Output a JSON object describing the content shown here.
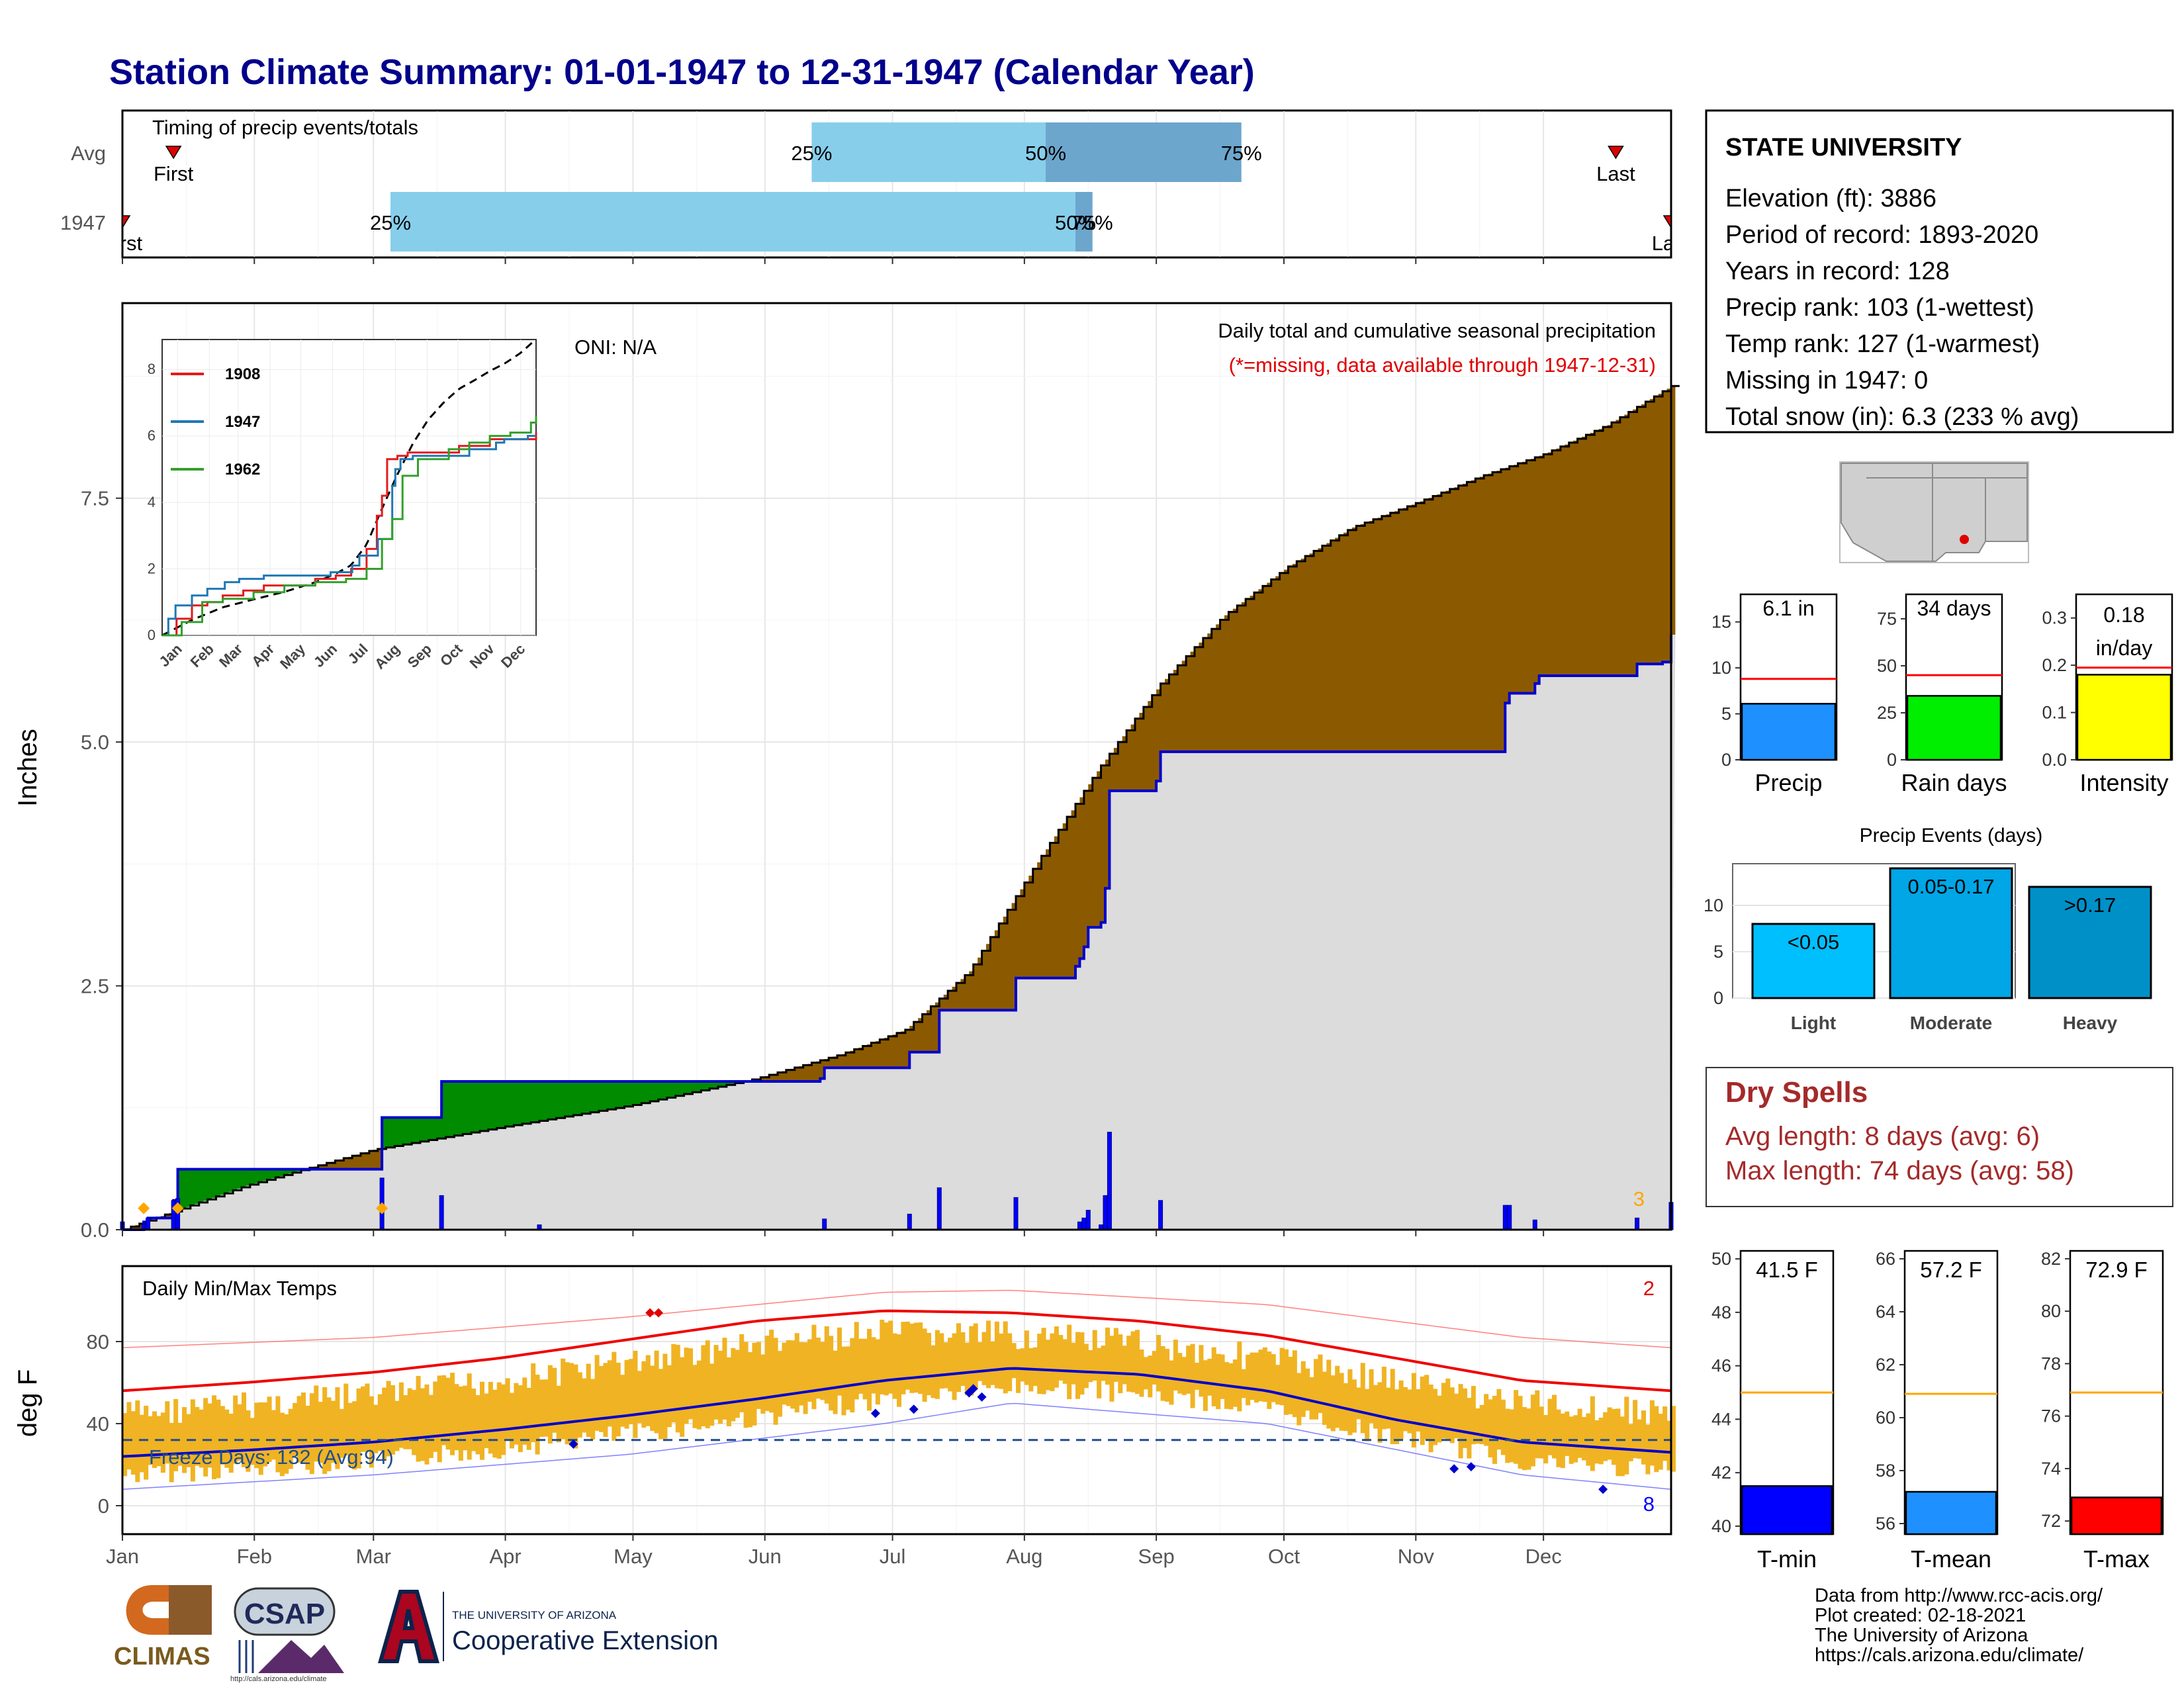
{
  "title": "Station Climate Summary: 01-01-1947 to 12-31-1947 (Calendar Year)",
  "timing": {
    "label": "Timing of precip events/totals",
    "rows": [
      "Avg",
      "1947"
    ],
    "first": "First",
    "last": "Last",
    "pct": [
      "25%",
      "50%",
      "75%"
    ],
    "avg": {
      "first_doy": 13,
      "p25_doy": 163,
      "p50_doy": 218,
      "p75_doy": 264,
      "last_doy": 352
    },
    "yr": {
      "first_doy": 1,
      "p25_doy": 64,
      "p50_doy": 225,
      "p75_doy": 229,
      "last_doy": 365
    }
  },
  "months": [
    "Jan",
    "Feb",
    "Mar",
    "Apr",
    "May",
    "Jun",
    "Jul",
    "Aug",
    "Sep",
    "Oct",
    "Nov",
    "Dec"
  ],
  "precip": {
    "ylabel": "Inches",
    "yticks": [
      "0.0",
      "2.5",
      "5.0",
      "7.5"
    ],
    "oni": "ONI: N/A",
    "note1": "Daily total and cumulative seasonal precipitation",
    "note2": "(*=missing, data available through 1947-12-31)",
    "corner": "3"
  },
  "inset": {
    "xticks": [
      "Jan",
      "Feb",
      "Mar",
      "Apr",
      "May",
      "Jun",
      "Jul",
      "Aug",
      "Sep",
      "Oct",
      "Nov",
      "Dec"
    ],
    "yticks": [
      "0",
      "2",
      "4",
      "6",
      "8"
    ],
    "legend": [
      {
        "name": "1908",
        "color": "#e31a1c"
      },
      {
        "name": "1947",
        "color": "#1f78b4"
      },
      {
        "name": "1962",
        "color": "#33a02c"
      }
    ]
  },
  "temp": {
    "ylabel": "deg F",
    "panel_label": "Daily Min/Max Temps",
    "yticks": [
      "0",
      "40",
      "80"
    ],
    "freeze": "Freeze Days: 132 (Avg:94)",
    "corner_hi": "2",
    "corner_lo": "8"
  },
  "station": {
    "name": "STATE UNIVERSITY",
    "lines": [
      "Elevation (ft): 3886",
      "Period of record: 1893-2020",
      "Years in record: 128",
      "Precip rank: 103 (1-wettest)",
      "Temp rank: 127 (1-warmest)",
      "Missing in 1947: 0",
      "Total snow (in): 6.3 (233 % avg)"
    ]
  },
  "mini": [
    {
      "label": "Precip",
      "value_text": "6.1 in",
      "value": 6.1,
      "avg": 8.8,
      "ymax": 18,
      "ticks": [
        "0",
        "5",
        "10",
        "15"
      ],
      "tickvals": [
        0,
        5,
        10,
        15
      ],
      "color": "#1e90ff"
    },
    {
      "label": "Rain days",
      "value_text": "34 days",
      "value": 34,
      "avg": 45,
      "ymax": 88,
      "ticks": [
        "0",
        "25",
        "50",
        "75"
      ],
      "tickvals": [
        0,
        25,
        50,
        75
      ],
      "color": "#00ee00"
    },
    {
      "label": "Intensity",
      "value_text": "0.18 in/day",
      "value": 0.18,
      "avg": 0.195,
      "ymax": 0.35,
      "ticks": [
        "0.0",
        "0.1",
        "0.2",
        "0.3"
      ],
      "tickvals": [
        0,
        0.1,
        0.2,
        0.3
      ],
      "color": "#ffff00"
    }
  ],
  "events": {
    "title": "Precip Events (days)",
    "yticks": [
      "0",
      "5",
      "10"
    ],
    "bars": [
      {
        "label": "Light",
        "value_text": "<0.05",
        "value": 8,
        "color": "#00bfff"
      },
      {
        "label": "Moderate",
        "value_text": "0.05-0.17",
        "value": 14,
        "color": "#00a6e6"
      },
      {
        "label": "Heavy",
        "value_text": ">0.17",
        "value": 12,
        "color": "#0090c8"
      }
    ]
  },
  "dry": {
    "title": "Dry Spells",
    "line1": "Avg length: 8 days (avg: 6)",
    "line2": "Max length: 74 days (avg: 58)"
  },
  "temps_mini": [
    {
      "label": "T-min",
      "value_text": "41.5 F",
      "value": 41.5,
      "avg": 45.0,
      "ymin": 39.7,
      "ymax": 50.3,
      "ticks": [
        "40",
        "42",
        "44",
        "46",
        "48",
        "50"
      ],
      "tickvals": [
        40,
        42,
        44,
        46,
        48,
        50
      ],
      "color": "#0000ff"
    },
    {
      "label": "T-mean",
      "value_text": "57.2 F",
      "value": 57.2,
      "avg": 60.9,
      "ymin": 55.6,
      "ymax": 66.3,
      "ticks": [
        "56",
        "58",
        "60",
        "62",
        "64",
        "66"
      ],
      "tickvals": [
        56,
        58,
        60,
        62,
        64,
        66
      ],
      "color": "#1e90ff"
    },
    {
      "label": "T-max",
      "value_text": "72.9 F",
      "value": 72.9,
      "avg": 76.9,
      "ymin": 71.5,
      "ymax": 82.3,
      "ticks": [
        "72",
        "74",
        "76",
        "78",
        "80",
        "82"
      ],
      "tickvals": [
        72,
        74,
        76,
        78,
        80,
        82
      ],
      "color": "#ff0000"
    }
  ],
  "footer": {
    "lines": [
      "Data from http://www.rcc-acis.org/",
      "Plot created: 02-18-2021",
      "The University of Arizona",
      "https://cals.arizona.edu/climate/"
    ],
    "logo1": "CLIMAS",
    "logo2": "CSAP",
    "logo2_url": "http://cals.arizona.edu/climate",
    "logo3_top": "THE UNIVERSITY OF ARIZONA",
    "logo3_main": "Cooperative Extension"
  },
  "chart_data": {
    "type": "area",
    "x_unit": "day of year 1947",
    "ylim": [
      0,
      9.5
    ],
    "series": [
      {
        "name": "1947",
        "x": [
          1,
          6,
          7,
          13,
          14,
          61,
          62,
          75,
          76,
          165,
          166,
          185,
          186,
          192,
          193,
          210,
          211,
          224,
          225,
          226,
          227,
          228,
          231,
          232,
          233,
          244,
          245,
          325,
          326,
          326,
          327,
          333,
          334,
          356,
          357,
          362,
          363,
          365
        ],
        "y": [
          0.0,
          0.08,
          0.12,
          0.3,
          0.62,
          0.62,
          1.15,
          1.15,
          1.52,
          1.55,
          1.66,
          1.66,
          1.82,
          1.82,
          2.25,
          2.25,
          2.58,
          2.58,
          2.7,
          2.78,
          2.9,
          3.1,
          3.15,
          3.5,
          4.5,
          4.6,
          4.9,
          4.9,
          5.15,
          5.4,
          5.5,
          5.6,
          5.68,
          5.68,
          5.8,
          5.8,
          5.82,
          6.1
        ]
      }
    ],
    "avg_cumulative": {
      "x": [
        1,
        30,
        60,
        90,
        120,
        150,
        170,
        185,
        200,
        215,
        230,
        245,
        260,
        275,
        290,
        305,
        320,
        335,
        350,
        365
      ],
      "y": [
        0.0,
        0.45,
        0.82,
        1.05,
        1.27,
        1.55,
        1.8,
        2.05,
        2.65,
        3.7,
        4.7,
        5.6,
        6.3,
        6.8,
        7.2,
        7.45,
        7.72,
        7.95,
        8.25,
        8.65
      ]
    },
    "daily_precip": [
      {
        "day": 1,
        "v": 0.08
      },
      {
        "day": 6,
        "v": 0.05
      },
      {
        "day": 7,
        "v": 0.12
      },
      {
        "day": 13,
        "v": 0.3
      },
      {
        "day": 14,
        "v": 0.32
      },
      {
        "day": 62,
        "v": 0.53
      },
      {
        "day": 76,
        "v": 0.35
      },
      {
        "day": 99,
        "v": 0.05
      },
      {
        "day": 166,
        "v": 0.11
      },
      {
        "day": 186,
        "v": 0.16
      },
      {
        "day": 193,
        "v": 0.43
      },
      {
        "day": 211,
        "v": 0.33
      },
      {
        "day": 226,
        "v": 0.08
      },
      {
        "day": 227,
        "v": 0.12
      },
      {
        "day": 228,
        "v": 0.2
      },
      {
        "day": 231,
        "v": 0.05
      },
      {
        "day": 232,
        "v": 0.35
      },
      {
        "day": 233,
        "v": 1.0
      },
      {
        "day": 245,
        "v": 0.3
      },
      {
        "day": 326,
        "v": 0.25
      },
      {
        "day": 327,
        "v": 0.25
      },
      {
        "day": 333,
        "v": 0.1
      },
      {
        "day": 357,
        "v": 0.12
      },
      {
        "day": 365,
        "v": 0.28
      }
    ],
    "snow_days": [
      6,
      14,
      62
    ],
    "temperature": {
      "avg_max": {
        "x": [
          1,
          30,
          60,
          90,
          120,
          150,
          180,
          210,
          240,
          270,
          300,
          330,
          365
        ],
        "y": [
          56,
          60,
          65,
          72,
          81,
          90,
          95,
          94,
          90,
          83,
          72,
          61,
          56
        ]
      },
      "avg_min": {
        "x": [
          1,
          30,
          60,
          90,
          120,
          150,
          180,
          210,
          240,
          270,
          300,
          330,
          365
        ],
        "y": [
          24,
          27,
          31,
          37,
          44,
          52,
          61,
          67,
          64,
          56,
          42,
          31,
          26
        ]
      },
      "record_max": {
        "x": [
          1,
          60,
          120,
          180,
          210,
          270,
          330,
          365
        ],
        "y": [
          77,
          82,
          92,
          104,
          105,
          98,
          82,
          77
        ]
      },
      "record_min": {
        "x": [
          1,
          60,
          120,
          180,
          210,
          270,
          330,
          365
        ],
        "y": [
          8,
          15,
          25,
          40,
          50,
          40,
          15,
          8
        ]
      },
      "freeze_line": 32
    }
  }
}
